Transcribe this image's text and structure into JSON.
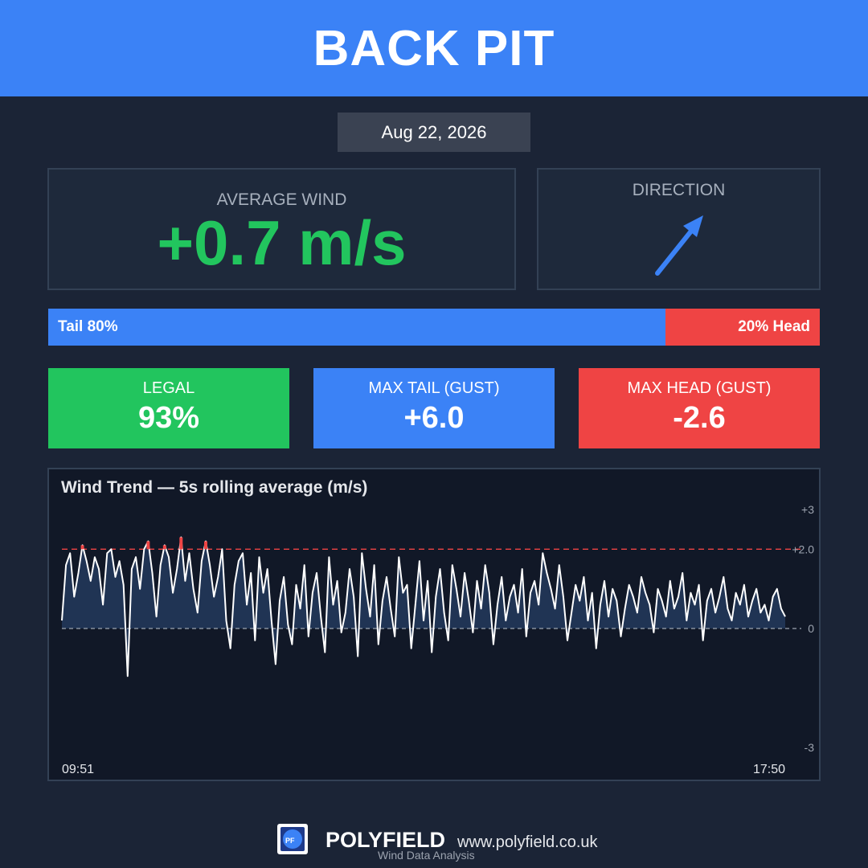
{
  "header": {
    "title": "BACK PIT"
  },
  "date": "Aug 22, 2026",
  "average_wind": {
    "label": "AVERAGE WIND",
    "value": "+0.7 m/s"
  },
  "direction": {
    "label": "DIRECTION",
    "icon": "arrow-up-right-icon"
  },
  "split": {
    "tail_label": "Tail 80%",
    "head_label": "20% Head",
    "tail_fraction": 0.8
  },
  "stats": {
    "legal": {
      "label": "LEGAL",
      "value": "93%"
    },
    "max_tail": {
      "label": "MAX TAIL (GUST)",
      "value": "+6.0"
    },
    "max_head": {
      "label": "MAX HEAD (GUST)",
      "value": "-2.6"
    }
  },
  "colors": {
    "accent_blue": "#3b82f6",
    "green": "#22c55e",
    "red": "#ef4444",
    "background": "#1b2436"
  },
  "chart_data": {
    "type": "line",
    "title": "Wind Trend — 5s rolling average (m/s)",
    "y_tick_labels": [
      "+3",
      "+2.0",
      "0",
      "-3"
    ],
    "y_ticks": [
      3,
      2,
      0,
      -3
    ],
    "ylim": [
      -3,
      3
    ],
    "limit_line": 2.0,
    "x_start_label": "09:51",
    "x_end_label": "17:50",
    "series": [
      {
        "values": [
          0.2,
          1.6,
          1.9,
          0.8,
          1.4,
          2.1,
          1.7,
          1.2,
          1.8,
          1.5,
          0.6,
          1.9,
          2.0,
          1.3,
          1.7,
          1.1,
          -1.2,
          1.5,
          1.8,
          1.0,
          2.0,
          2.2,
          1.4,
          0.3,
          1.6,
          2.1,
          1.8,
          0.9,
          1.5,
          2.3,
          1.2,
          1.9,
          1.0,
          0.4,
          1.7,
          2.2,
          1.6,
          0.8,
          1.3,
          2.0,
          0.2,
          -0.5,
          1.1,
          1.7,
          1.9,
          0.6,
          1.4,
          -0.3,
          1.8,
          0.9,
          1.5,
          0.2,
          -0.9,
          0.7,
          1.3,
          0.1,
          -0.4,
          1.1,
          0.5,
          1.6,
          -0.2,
          0.9,
          1.4,
          0.3,
          -0.6,
          1.8,
          0.6,
          1.2,
          -0.1,
          0.4,
          1.5,
          0.8,
          -0.7,
          1.9,
          1.0,
          0.3,
          1.6,
          -0.4,
          0.7,
          1.3,
          0.5,
          -0.2,
          1.8,
          0.9,
          1.1,
          -0.5,
          0.6,
          1.7,
          0.2,
          1.2,
          -0.6,
          0.8,
          1.5,
          0.4,
          -0.3,
          1.6,
          1.0,
          0.3,
          1.4,
          0.7,
          -0.1,
          1.2,
          0.5,
          1.6,
          0.9,
          -0.4,
          0.6,
          1.3,
          0.2,
          0.8,
          1.1,
          0.4,
          1.5,
          -0.2,
          0.9,
          1.2,
          0.6,
          1.9,
          1.4,
          1.0,
          0.5,
          1.6,
          0.8,
          -0.3,
          0.4,
          1.1,
          0.7,
          1.3,
          0.2,
          0.9,
          -0.5,
          0.6,
          1.2,
          0.3,
          1.0,
          0.7,
          -0.2,
          0.5,
          1.1,
          0.8,
          0.4,
          1.3,
          0.9,
          0.6,
          -0.1,
          1.0,
          0.7,
          0.3,
          1.2,
          0.5,
          0.8,
          1.4,
          0.2,
          0.9,
          0.6,
          1.1,
          -0.3,
          0.7,
          1.0,
          0.4,
          0.8,
          1.3,
          0.5,
          0.2,
          0.9,
          0.6,
          1.1,
          0.3,
          0.7,
          1.0,
          0.4,
          0.6,
          0.2,
          0.8,
          1.0,
          0.5,
          0.3
        ],
        "color": "#ffffff"
      }
    ]
  },
  "footer": {
    "logo_text": "PF",
    "brand": "POLYFIELD",
    "site": "www.polyfield.co.uk",
    "tagline": "Wind Data Analysis"
  }
}
